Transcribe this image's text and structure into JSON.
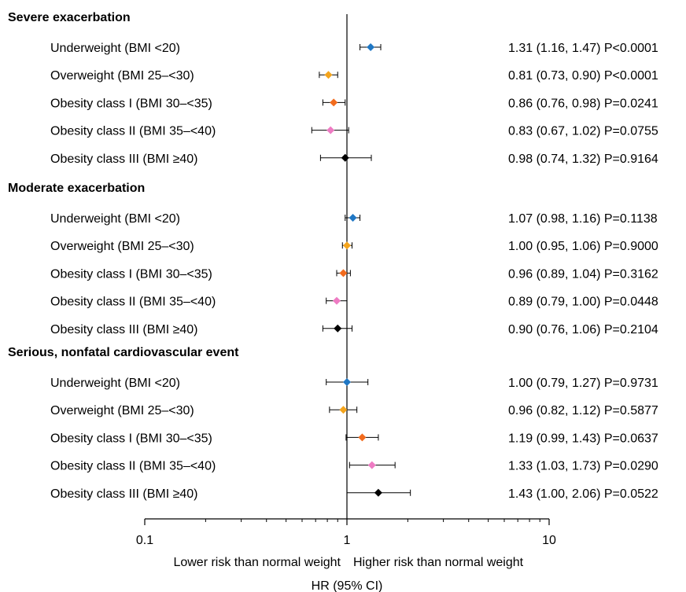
{
  "chart_data": {
    "type": "forest",
    "xscale": "log",
    "xlim": [
      0.1,
      10
    ],
    "xticks": [
      "0.1",
      "1",
      "10"
    ],
    "xlabel": "HR (95% CI)",
    "direction_left": "Lower risk than normal weight",
    "direction_right": "Higher risk than normal weight",
    "reference_line": 1,
    "colors": {
      "Underweight": "#1f77c4",
      "Overweight": "#f4a41c",
      "Obesity I": "#f26b1d",
      "Obesity II": "#ee7bc3",
      "Obesity III": "#000000"
    },
    "groups": [
      {
        "title": "Severe exacerbation",
        "rows": [
          {
            "label": "Underweight (BMI <20)",
            "category": "Underweight",
            "hr": 1.31,
            "lo": 1.16,
            "hi": 1.47,
            "text": "1.31 (1.16, 1.47) P<0.0001"
          },
          {
            "label": "Overweight (BMI 25–<30)",
            "category": "Overweight",
            "hr": 0.81,
            "lo": 0.73,
            "hi": 0.9,
            "text": "0.81 (0.73, 0.90) P<0.0001"
          },
          {
            "label": "Obesity class I (BMI 30–<35)",
            "category": "Obesity I",
            "hr": 0.86,
            "lo": 0.76,
            "hi": 0.98,
            "text": "0.86 (0.76, 0.98) P=0.0241"
          },
          {
            "label": "Obesity class II (BMI 35–<40)",
            "category": "Obesity II",
            "hr": 0.83,
            "lo": 0.67,
            "hi": 1.02,
            "text": "0.83 (0.67, 1.02) P=0.0755"
          },
          {
            "label": "Obesity class III (BMI ≥40)",
            "category": "Obesity III",
            "hr": 0.98,
            "lo": 0.74,
            "hi": 1.32,
            "text": "0.98 (0.74, 1.32) P=0.9164"
          }
        ]
      },
      {
        "title": "Moderate exacerbation",
        "rows": [
          {
            "label": "Underweight (BMI <20)",
            "category": "Underweight",
            "hr": 1.07,
            "lo": 0.98,
            "hi": 1.16,
            "text": "1.07 (0.98, 1.16) P=0.1138"
          },
          {
            "label": "Overweight (BMI 25–<30)",
            "category": "Overweight",
            "hr": 1.0,
            "lo": 0.95,
            "hi": 1.06,
            "text": "1.00 (0.95, 1.06) P=0.9000"
          },
          {
            "label": "Obesity class I (BMI 30–<35)",
            "category": "Obesity I",
            "hr": 0.96,
            "lo": 0.89,
            "hi": 1.04,
            "text": "0.96 (0.89, 1.04) P=0.3162"
          },
          {
            "label": "Obesity class II (BMI 35–<40)",
            "category": "Obesity II",
            "hr": 0.89,
            "lo": 0.79,
            "hi": 1.0,
            "text": "0.89 (0.79, 1.00) P=0.0448"
          },
          {
            "label": "Obesity class III (BMI ≥40)",
            "category": "Obesity III",
            "hr": 0.9,
            "lo": 0.76,
            "hi": 1.06,
            "text": "0.90 (0.76, 1.06) P=0.2104"
          }
        ]
      },
      {
        "title": "Serious, nonfatal cardiovascular event",
        "rows": [
          {
            "label": "Underweight (BMI <20)",
            "category": "Underweight",
            "hr": 1.0,
            "lo": 0.79,
            "hi": 1.27,
            "text": "1.00 (0.79, 1.27) P=0.9731"
          },
          {
            "label": "Overweight (BMI 25–<30)",
            "category": "Overweight",
            "hr": 0.96,
            "lo": 0.82,
            "hi": 1.12,
            "text": "0.96 (0.82, 1.12) P=0.5877"
          },
          {
            "label": "Obesity class I (BMI 30–<35)",
            "category": "Obesity I",
            "hr": 1.19,
            "lo": 0.99,
            "hi": 1.43,
            "text": "1.19 (0.99, 1.43) P=0.0637"
          },
          {
            "label": "Obesity class II (BMI 35–<40)",
            "category": "Obesity II",
            "hr": 1.33,
            "lo": 1.03,
            "hi": 1.73,
            "text": "1.33 (1.03, 1.73) P=0.0290"
          },
          {
            "label": "Obesity class III (BMI ≥40)",
            "category": "Obesity III",
            "hr": 1.43,
            "lo": 1.0,
            "hi": 2.06,
            "text": "1.43 (1.00, 2.06) P=0.0522"
          }
        ]
      }
    ]
  }
}
